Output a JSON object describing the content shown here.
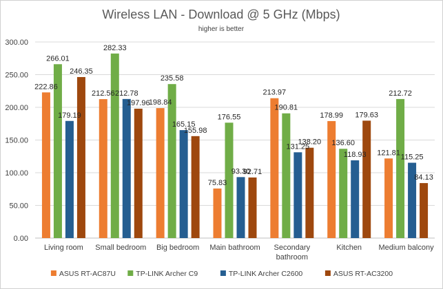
{
  "chart_data": {
    "type": "bar",
    "title": "Wireless LAN - Download @ 5 GHz (Mbps)",
    "subtitle": "higher is better",
    "categories": [
      [
        "Living room"
      ],
      [
        "Small bedroom"
      ],
      [
        "Big bedroom"
      ],
      [
        "Main bathroom"
      ],
      [
        "Secondary",
        "bathroom"
      ],
      [
        "Kitchen"
      ],
      [
        "Medium balcony"
      ]
    ],
    "series": [
      {
        "name": "ASUS RT-AC87U",
        "color": "#ed7d31",
        "values": [
          222.86,
          212.56,
          198.84,
          75.83,
          213.97,
          178.99,
          121.81
        ]
      },
      {
        "name": "TP-LINK Archer C9",
        "color": "#70ad47",
        "values": [
          266.01,
          282.33,
          235.58,
          176.55,
          190.81,
          136.6,
          212.72
        ]
      },
      {
        "name": "TP-LINK Archer C2600",
        "color": "#255e91",
        "values": [
          179.19,
          212.78,
          165.15,
          93.3,
          131.25,
          118.93,
          115.25
        ]
      },
      {
        "name": "ASUS RT-AC3200",
        "color": "#9e480e",
        "values": [
          246.35,
          197.96,
          155.98,
          92.71,
          138.2,
          179.63,
          84.13
        ]
      }
    ],
    "y_ticks": [
      "0.00",
      "50.00",
      "100.00",
      "150.00",
      "200.00",
      "250.00",
      "300.00"
    ],
    "ylim": [
      0,
      300
    ],
    "grid": true,
    "legend_position": "bottom"
  }
}
